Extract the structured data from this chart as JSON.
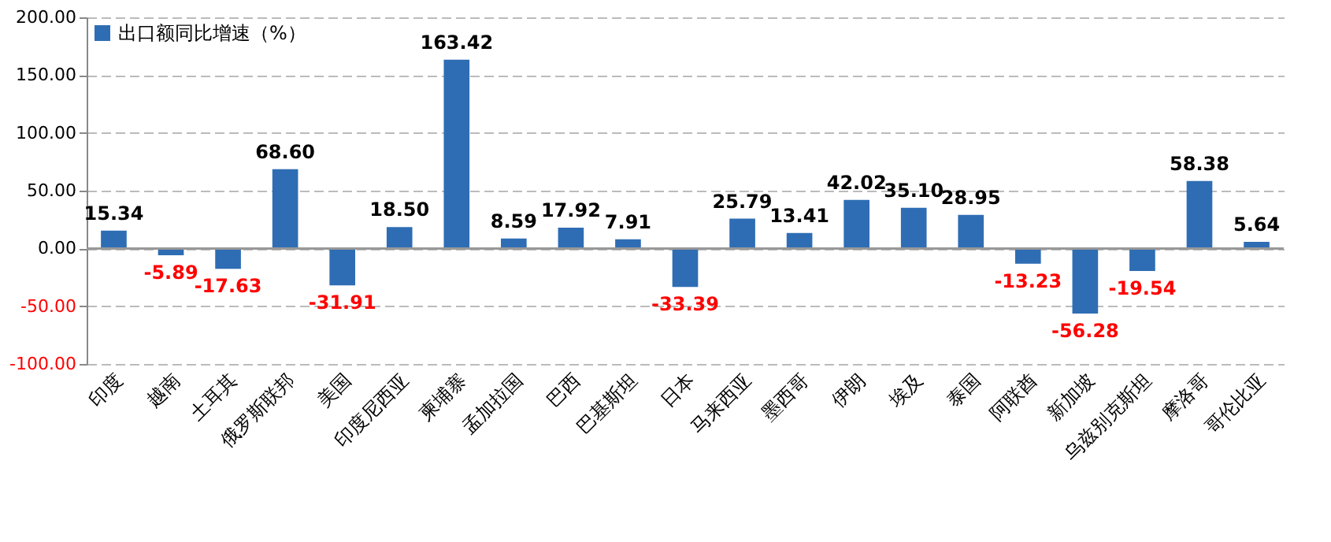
{
  "chart_data": {
    "type": "bar",
    "categories": [
      "印度",
      "越南",
      "土耳其",
      "俄罗斯联邦",
      "美国",
      "印度尼西亚",
      "柬埔寨",
      "孟加拉国",
      "巴西",
      "巴基斯坦",
      "日本",
      "马来西亚",
      "墨西哥",
      "伊朗",
      "埃及",
      "泰国",
      "阿联酋",
      "新加坡",
      "乌兹别克斯坦",
      "摩洛哥",
      "哥伦比亚"
    ],
    "series": [
      {
        "name": "出口额同比增速（%）",
        "color": "#2e6db4",
        "values": [
          15.34,
          -5.89,
          -17.63,
          68.6,
          -31.91,
          18.5,
          163.42,
          8.59,
          17.92,
          7.91,
          -33.39,
          25.79,
          13.41,
          42.02,
          35.1,
          28.95,
          -13.23,
          -56.28,
          -19.54,
          58.38,
          5.64
        ]
      }
    ],
    "ylim": [
      -100,
      200
    ],
    "yticks": [
      {
        "value": -100,
        "label": "-100.00"
      },
      {
        "value": -50,
        "label": "-50.00"
      },
      {
        "value": 0,
        "label": "0.00"
      },
      {
        "value": 50,
        "label": "50.00"
      },
      {
        "value": 100,
        "label": "100.00"
      },
      {
        "value": 150,
        "label": "150.00"
      },
      {
        "value": 200,
        "label": "200.00"
      }
    ],
    "value_labels": [
      "15.34",
      "-5.89",
      "-17.63",
      "68.60",
      "-31.91",
      "18.50",
      "163.42",
      "8.59",
      "17.92",
      "7.91",
      "-33.39",
      "25.79",
      "13.41",
      "42.02",
      "35.10",
      "28.95",
      "-13.23",
      "-56.28",
      "-19.54",
      "58.38",
      "5.64"
    ],
    "grid": "y",
    "legend": "top left"
  }
}
